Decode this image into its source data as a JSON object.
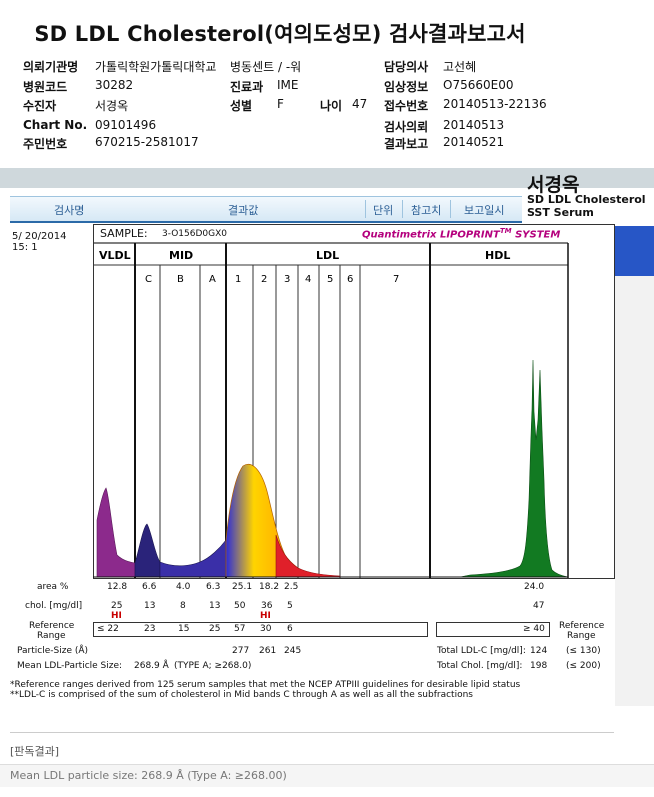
{
  "title": "SD LDL Cholesterol(여의도성모) 검사결과보고서",
  "info": {
    "hospital_label": "의뢰기관명",
    "hospital_value": "가톨릭학원가톨릭대학교",
    "ward_label": "병동센트 / -워",
    "doctor_label": "담당의사",
    "doctor_value": "고선혜",
    "code_label": "병원코드",
    "code_value": "30282",
    "dept_label": "진료과",
    "dept_value": "IME",
    "clinical_label": "임상정보",
    "clinical_value": "O75660E00",
    "receiver_label": "수진자",
    "receiver_value": "서경옥",
    "sex_label": "성별",
    "sex_value": "F",
    "age_label": "나이",
    "age_value": "47",
    "receipt_label": "접수번호",
    "receipt_value": "20140513-22136",
    "chart_label": "Chart No.",
    "chart_value": "09101496",
    "request_label": "검사의뢰",
    "request_value": "20140513",
    "id_label": "주민번호",
    "id_value": "670215-2581017",
    "report_label": "결과보고",
    "report_value": "20140521"
  },
  "header": {
    "col_test": "검사명",
    "col_result": "결과값",
    "col_unit": "단위",
    "col_ref": "참고치",
    "col_report": "보고일시"
  },
  "side": {
    "patient": "서경옥",
    "test_name": "SD LDL Cholesterol",
    "specimen": "SST Serum"
  },
  "report": {
    "date_line1": "5/ 20/2014",
    "date_line2": "15: 1",
    "sample_label": "SAMPLE:",
    "sample_value": "3-O156D0GX0",
    "brand": "Quantimetrix LIPOPRINT",
    "brand_tm": "TM",
    "brand_system": " SYSTEM",
    "groups": {
      "vldl": "VLDL",
      "mid": "MID",
      "ldl": "LDL",
      "hdl": "HDL"
    },
    "bands": {
      "c": "C",
      "b": "B",
      "a": "A",
      "b1": "1",
      "b2": "2",
      "b3": "3",
      "b4": "4",
      "b5": "5",
      "b6": "6",
      "b7": "7"
    }
  },
  "table": {
    "area_label": "area %",
    "area_values": [
      "12.8",
      "6.6",
      "4.0",
      "6.3",
      "25.1",
      "18.2",
      "2.5"
    ],
    "area_hdl": "24.0",
    "chol_label": "chol. [mg/dl]",
    "chol_values": [
      "25",
      "13",
      "8",
      "13",
      "50",
      "36",
      "5"
    ],
    "chol_hdl": "47",
    "hi_flag": "HI",
    "ref_label_1": "Reference",
    "ref_label_2": "Range",
    "ref_values": [
      "≤ 22",
      "23",
      "15",
      "25",
      "57",
      "30",
      "6"
    ],
    "ref_hdl": "≥ 40",
    "ref_right_1": "Reference",
    "ref_right_2": "Range",
    "particle_label": "Particle-Size (Å)",
    "particle_values": [
      "277",
      "261",
      "245"
    ],
    "total_ldlc_label": "Total LDL-C [mg/dl]:",
    "total_ldlc_value": "124",
    "total_ldlc_ref": "(≤ 130)",
    "mean_label": "Mean LDL-Particle Size:",
    "mean_value": "268.9 Å",
    "mean_type": "(TYPE A; ≥268.0)",
    "total_chol_label": "Total Chol. [mg/dl]:",
    "total_chol_value": "198",
    "total_chol_ref": "(≤ 200)"
  },
  "footnotes": {
    "line1": "*Reference ranges derived from 125 serum samples that met the NCEP ATPIII guidelines for desirable lipid status",
    "line2": "**LDL-C is comprised of the sum of cholesterol in Mid bands C through A as well as all the subfractions"
  },
  "result": {
    "header": "[판독결과]",
    "text": "Mean LDL particle size: 268.9 Å (Type A: ≥268.00)"
  }
}
